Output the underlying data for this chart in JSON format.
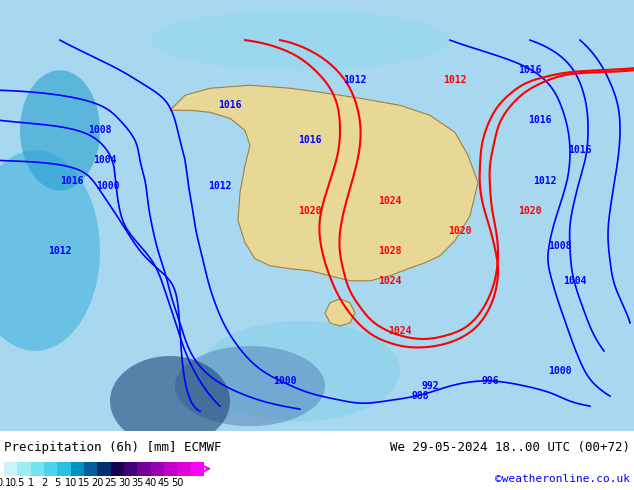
{
  "title_left": "Precipitation (6h) [mm] ECMWF",
  "title_right": "We 29-05-2024 18..00 UTC (00+72)",
  "credit": "©weatheronline.co.uk",
  "colorbar_values": [
    0.1,
    0.5,
    1,
    2,
    5,
    10,
    15,
    20,
    25,
    30,
    35,
    40,
    45,
    50
  ],
  "colorbar_colors": [
    "#c8f0f8",
    "#a0e0f0",
    "#78d0e8",
    "#50c0e0",
    "#28b0d8",
    "#0090c8",
    "#0060a0",
    "#003878",
    "#200060",
    "#500088",
    "#8000a0",
    "#b000b0",
    "#d800c8",
    "#f000d8",
    "#ff00ff"
  ],
  "bg_color": "#a8d8f0",
  "map_bg": "#a8d8f0",
  "land_color": "#f0e0b0",
  "figure_bg": "#ffffff",
  "bottom_bar_color": "#ffffff",
  "label_fontsize": 9,
  "credit_fontsize": 8
}
